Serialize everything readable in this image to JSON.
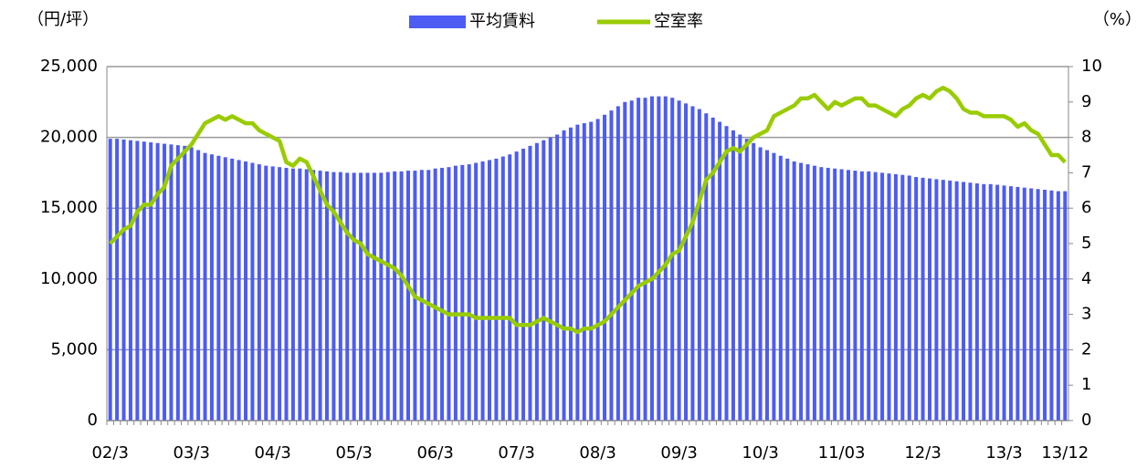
{
  "chart_data": {
    "type": "bar",
    "y_label": "（円/坪）",
    "y2_label": "（%）",
    "categories": [
      "02/3",
      null,
      null,
      null,
      null,
      null,
      null,
      null,
      null,
      null,
      null,
      null,
      "03/3",
      null,
      null,
      null,
      null,
      null,
      null,
      null,
      null,
      null,
      null,
      null,
      "04/3",
      null,
      null,
      null,
      null,
      null,
      null,
      null,
      null,
      null,
      null,
      null,
      "05/3",
      null,
      null,
      null,
      null,
      null,
      null,
      null,
      null,
      null,
      null,
      null,
      "06/3",
      null,
      null,
      null,
      null,
      null,
      null,
      null,
      null,
      null,
      null,
      null,
      "07/3",
      null,
      null,
      null,
      null,
      null,
      null,
      null,
      null,
      null,
      null,
      null,
      "08/3",
      null,
      null,
      null,
      null,
      null,
      null,
      null,
      null,
      null,
      null,
      null,
      "09/3",
      null,
      null,
      null,
      null,
      null,
      null,
      null,
      null,
      null,
      null,
      null,
      "10/3",
      null,
      null,
      null,
      null,
      null,
      null,
      null,
      null,
      null,
      null,
      null,
      "11/03",
      null,
      null,
      null,
      null,
      null,
      null,
      null,
      null,
      null,
      null,
      null,
      "12/3",
      null,
      null,
      null,
      null,
      null,
      null,
      null,
      null,
      null,
      null,
      null,
      "13/3",
      null,
      null,
      null,
      null,
      null,
      null,
      null,
      null,
      "13/12"
    ],
    "series": [
      {
        "name": "平均賃料",
        "type": "bar",
        "color": "#4d5cf2",
        "values": [
          19900,
          19900,
          19850,
          19800,
          19750,
          19700,
          19650,
          19600,
          19550,
          19500,
          19450,
          19400,
          19300,
          19100,
          18900,
          18800,
          18700,
          18600,
          18500,
          18400,
          18300,
          18200,
          18100,
          18000,
          17950,
          17900,
          17850,
          17800,
          17800,
          17750,
          17700,
          17650,
          17600,
          17550,
          17550,
          17500,
          17500,
          17500,
          17500,
          17500,
          17500,
          17550,
          17600,
          17600,
          17650,
          17650,
          17700,
          17700,
          17800,
          17850,
          17900,
          18000,
          18050,
          18100,
          18200,
          18300,
          18400,
          18500,
          18650,
          18800,
          19000,
          19200,
          19400,
          19600,
          19800,
          20000,
          20200,
          20500,
          20700,
          20900,
          21000,
          21100,
          21300,
          21600,
          21900,
          22200,
          22500,
          22600,
          22800,
          22800,
          22900,
          22900,
          22900,
          22800,
          22600,
          22400,
          22200,
          22000,
          21700,
          21400,
          21100,
          20800,
          20500,
          20200,
          19900,
          19600,
          19300,
          19100,
          18900,
          18700,
          18500,
          18300,
          18200,
          18100,
          18000,
          17900,
          17850,
          17800,
          17750,
          17700,
          17650,
          17600,
          17600,
          17550,
          17500,
          17450,
          17400,
          17350,
          17300,
          17200,
          17150,
          17100,
          17050,
          17000,
          16950,
          16900,
          16850,
          16800,
          16750,
          16700,
          16700,
          16650,
          16600,
          16550,
          16500,
          16450,
          16400,
          16350,
          16300,
          16250,
          16200,
          16200
        ]
      },
      {
        "name": "空室率",
        "type": "line",
        "axis": "y2",
        "color": "#99cc00",
        "values": [
          5.0,
          5.2,
          5.4,
          5.5,
          5.9,
          6.1,
          6.1,
          6.4,
          6.6,
          7.2,
          7.4,
          7.6,
          7.8,
          8.1,
          8.4,
          8.5,
          8.6,
          8.5,
          8.6,
          8.5,
          8.4,
          8.4,
          8.2,
          8.1,
          8.0,
          7.9,
          7.3,
          7.2,
          7.4,
          7.3,
          6.9,
          6.5,
          6.1,
          5.9,
          5.6,
          5.3,
          5.1,
          5.0,
          4.7,
          4.6,
          4.5,
          4.4,
          4.3,
          4.1,
          3.8,
          3.5,
          3.4,
          3.3,
          3.2,
          3.1,
          3.0,
          3.0,
          3.0,
          3.0,
          2.9,
          2.9,
          2.9,
          2.9,
          2.9,
          2.9,
          2.7,
          2.7,
          2.7,
          2.8,
          2.9,
          2.8,
          2.7,
          2.6,
          2.6,
          2.5,
          2.6,
          2.6,
          2.7,
          2.8,
          3.0,
          3.2,
          3.4,
          3.6,
          3.8,
          3.9,
          4.0,
          4.2,
          4.4,
          4.7,
          4.8,
          5.2,
          5.6,
          6.2,
          6.8,
          7.0,
          7.3,
          7.6,
          7.7,
          7.6,
          7.8,
          8.0,
          8.1,
          8.2,
          8.6,
          8.7,
          8.8,
          8.9,
          9.1,
          9.1,
          9.2,
          9.0,
          8.8,
          9.0,
          8.9,
          9.0,
          9.1,
          9.1,
          8.9,
          8.9,
          8.8,
          8.7,
          8.6,
          8.8,
          8.9,
          9.1,
          9.2,
          9.1,
          9.3,
          9.4,
          9.3,
          9.1,
          8.8,
          8.7,
          8.7,
          8.6,
          8.6,
          8.6,
          8.6,
          8.5,
          8.3,
          8.4,
          8.2,
          8.1,
          7.8,
          7.5,
          7.5,
          7.3
        ]
      }
    ],
    "ylim": [
      0,
      25000
    ],
    "yticks": [
      0,
      {
        "value": 5000,
        "label": "5,000"
      },
      {
        "value": 10000,
        "label": "10,000"
      },
      {
        "value": 15000,
        "label": "15,000"
      },
      {
        "value": 20000,
        "label": "20,000"
      },
      {
        "value": 25000,
        "label": "25,000"
      }
    ],
    "y2lim": [
      0,
      10
    ],
    "y2ticks": [
      0,
      1,
      2,
      3,
      4,
      5,
      6,
      7,
      8,
      9,
      10
    ],
    "grid": true,
    "legend": "top"
  }
}
